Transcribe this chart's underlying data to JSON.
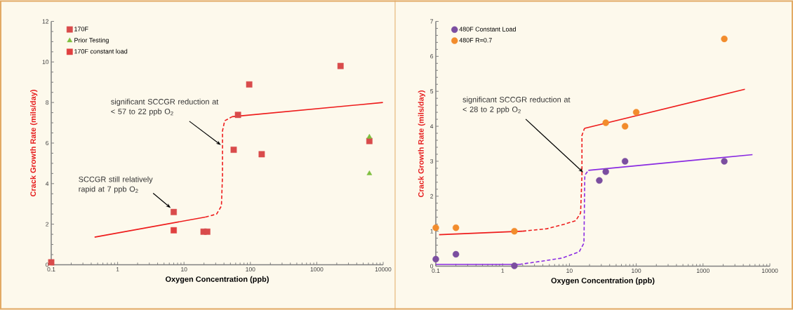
{
  "chart_data": [
    {
      "type": "scatter",
      "xlabel": "Oxygen Concentration (ppb)",
      "ylabel": "Crack Growth Rate (mils/day)",
      "log": "x",
      "xlim": [
        0.1,
        10000
      ],
      "ylim": [
        0,
        12
      ],
      "xticks": [
        0.1,
        1,
        10,
        100,
        1000,
        10000
      ],
      "yticks": [
        0,
        2,
        4,
        6,
        8,
        10,
        12
      ],
      "grid": false,
      "legend": "top left",
      "series": [
        {
          "name": "170F",
          "marker": "square",
          "color": "#d94b4b",
          "x": [
            0.1,
            7,
            19.7,
            22.4,
            56,
            65,
            96,
            148,
            2280,
            6200
          ],
          "values": [
            0.12,
            2.6,
            1.63,
            1.63,
            5.67,
            7.39,
            8.89,
            5.45,
            9.8,
            6.1
          ]
        },
        {
          "name": "Prior Testing",
          "marker": "triangle",
          "color": "#7fbf3f",
          "x": [
            6200,
            6200
          ],
          "values": [
            6.3,
            4.5
          ]
        },
        {
          "name": "170F constant load",
          "marker": "square",
          "color": "#e04040",
          "x": [
            7
          ],
          "values": [
            1.7
          ]
        },
        {
          "type": "line",
          "marker": "none",
          "line_style": "solid",
          "color": "#ee1c1c",
          "x": [
            0.45,
            21
          ],
          "values": [
            1.36,
            2.35
          ]
        },
        {
          "type": "line",
          "marker": "none",
          "line_style": "dashed",
          "color": "#ee1c1c",
          "x": [
            21,
            31,
            36.6,
            38,
            38,
            41,
            53
          ],
          "values": [
            2.35,
            2.5,
            2.9,
            4.4,
            6.6,
            7.1,
            7.3
          ]
        },
        {
          "type": "line",
          "marker": "none",
          "line_style": "solid",
          "color": "#ee1c1c",
          "x": [
            53,
            9900
          ],
          "values": [
            7.3,
            8.0
          ]
        }
      ],
      "annotations": [
        {
          "text": "significant SCCGR reduction at < 57 to 22 ppb O$_{2}$",
          "x": 36,
          "y": 5.9
        },
        {
          "text": "SCCGR still relatively rapid at 7 ppb O$_{2}$",
          "x": 6.3,
          "y": 2.8
        }
      ]
    },
    {
      "type": "scatter",
      "xlabel": "Oxygen Concentration (ppb)",
      "ylabel": "Crack Growth Rate (mils/day)",
      "log": "x",
      "xlim": [
        0.1,
        10000
      ],
      "ylim": [
        0,
        7
      ],
      "xticks": [
        0.1,
        1,
        10,
        100,
        1000,
        10000
      ],
      "yticks": [
        0,
        1,
        2,
        3,
        4,
        5,
        6,
        7
      ],
      "grid": false,
      "legend": "top left",
      "series": [
        {
          "name": "480F Constant Load",
          "marker": "circle",
          "color": "#7b4ea0",
          "x": [
            0.1,
            0.2,
            1.5,
            28,
            35,
            68,
            2080
          ],
          "values": [
            0.2,
            0.34,
            0.01,
            2.45,
            2.7,
            3.0,
            3.0
          ]
        },
        {
          "name": "480F R=0.7",
          "marker": "circle",
          "color": "#f28c2c",
          "x": [
            0.1,
            0.2,
            1.5,
            35,
            68,
            100,
            2080
          ],
          "values": [
            1.1,
            1.1,
            1.0,
            4.1,
            4.0,
            4.4,
            6.5
          ]
        },
        {
          "type": "line",
          "marker": "none",
          "line_style": "solid",
          "color": "#ee1c1c",
          "x": [
            0.112,
            2.0
          ],
          "values": [
            0.9,
            1.0
          ]
        },
        {
          "type": "line",
          "marker": "none",
          "line_style": "dashed",
          "color": "#ee1c1c",
          "x": [
            2.0,
            4.6,
            8.4,
            12.4,
            14.7,
            15.4,
            15.4,
            16.8
          ],
          "values": [
            1.0,
            1.07,
            1.2,
            1.3,
            1.52,
            2.6,
            3.74,
            3.94
          ]
        },
        {
          "type": "line",
          "marker": "none",
          "line_style": "solid",
          "color": "#ee1c1c",
          "x": [
            16.8,
            4230
          ],
          "values": [
            3.94,
            5.06
          ]
        },
        {
          "type": "line",
          "marker": "none",
          "line_style": "solid",
          "color": "#8a2be2",
          "x": [
            0.1,
            1.77
          ],
          "values": [
            0.05,
            0.05
          ]
        },
        {
          "type": "line",
          "marker": "none",
          "line_style": "dashed",
          "color": "#8a2be2",
          "x": [
            1.77,
            3.2,
            7.7,
            14,
            16.5,
            16.8,
            17,
            19.2
          ],
          "values": [
            0.05,
            0.12,
            0.23,
            0.41,
            0.66,
            1.88,
            2.6,
            2.74
          ]
        },
        {
          "type": "line",
          "marker": "none",
          "line_style": "solid",
          "color": "#8a2be2",
          "x": [
            19.2,
            5500
          ],
          "values": [
            2.74,
            3.19
          ]
        }
      ],
      "annotations": [
        {
          "text": "significant SCCGR reduction at < 28 to 2 ppb O$_{2}$",
          "x": 16.1,
          "y": 2.68
        }
      ]
    }
  ]
}
